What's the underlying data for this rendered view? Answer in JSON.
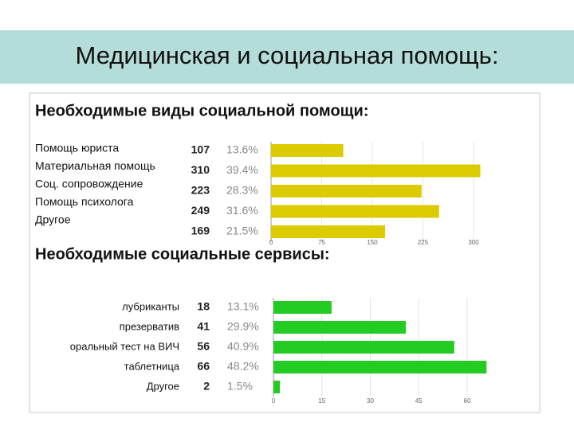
{
  "header": {
    "title": "Медицинская и социальная помощь:"
  },
  "chart_data": [
    {
      "type": "bar",
      "orientation": "horizontal",
      "title": "Необходимые виды социальной помощи:",
      "categories": [
        "Помощь юриста",
        "Материальная помощь",
        "Соц. сопровождение",
        "Помощь психолога",
        "Другое"
      ],
      "values": [
        107,
        310,
        223,
        249,
        169
      ],
      "shares": [
        "13.6%",
        "39.4%",
        "28.3%",
        "31.6%",
        "21.5%"
      ],
      "color": "#dccb00",
      "xlim": [
        0,
        300
      ],
      "xticks": [
        0,
        75,
        150,
        225,
        300
      ],
      "grid": true
    },
    {
      "type": "bar",
      "orientation": "horizontal",
      "title": "Необходимые социальные сервисы:",
      "categories": [
        "лубриканты",
        "презерватив",
        "оральный тест на ВИЧ",
        "таблетница",
        "Другое"
      ],
      "values": [
        18,
        41,
        56,
        66,
        2
      ],
      "shares": [
        "13.1%",
        "29.9%",
        "40.9%",
        "48.2%",
        "1.5%"
      ],
      "color": "#22cc22",
      "xlim": [
        0,
        60
      ],
      "xticks": [
        0,
        15,
        30,
        45,
        60
      ],
      "grid": true
    }
  ]
}
